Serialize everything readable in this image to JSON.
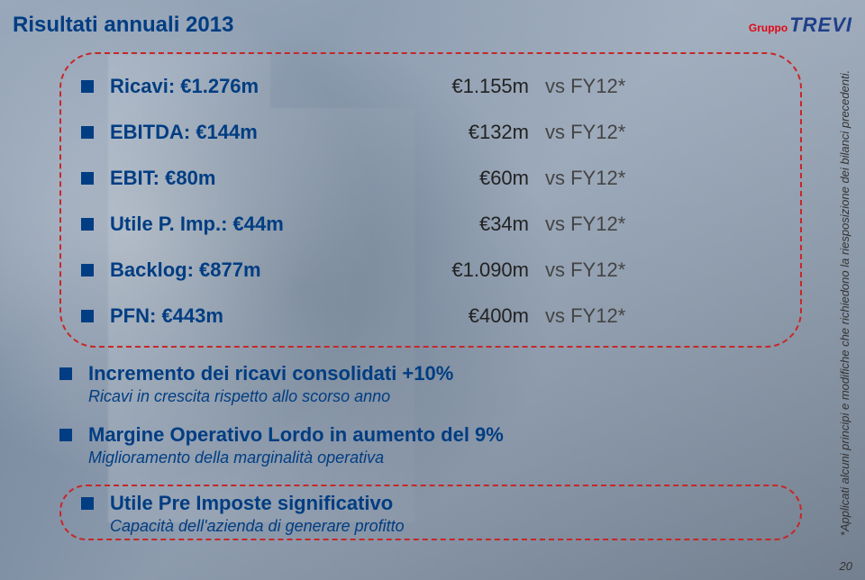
{
  "colors": {
    "title": "#003d82",
    "bullet": "#003d82",
    "dashed_border": "#c62828",
    "logo_red": "#e30613",
    "logo_blue": "#1f3f8a",
    "text_dark": "#222222",
    "subtext": "#003d82"
  },
  "header": {
    "title": "Risultati annuali 2013",
    "logo_gruppo": "Gruppo",
    "logo_trevi": "TREVI"
  },
  "metrics": [
    {
      "label": "Ricavi: €1.276m",
      "value": "€1.155m",
      "compare": "vs FY12*"
    },
    {
      "label": "EBITDA: €144m",
      "value": "€132m",
      "compare": "vs FY12*"
    },
    {
      "label": "EBIT: €80m",
      "value": "€60m",
      "compare": "vs FY12*"
    },
    {
      "label": "Utile P. Imp.: €44m",
      "value": "€34m",
      "compare": "vs FY12*"
    },
    {
      "label": "Backlog: €877m",
      "value": "€1.090m",
      "compare": "vs FY12*"
    },
    {
      "label": "PFN: €443m",
      "value": "€400m",
      "compare": "vs FY12*"
    }
  ],
  "notes": {
    "n1_title": "Incremento dei ricavi consolidati +10%",
    "n1_sub": "Ricavi in crescita rispetto allo scorso anno",
    "n2_title": "Margine Operativo Lordo in aumento del 9%",
    "n2_sub": "Miglioramento della marginalità operativa",
    "h_title": "Utile Pre Imposte significativo",
    "h_sub": "Capacità dell'azienda di generare profitto"
  },
  "footnote": "*Applicati alcuni principi e modifiche che richiedono la riesposizione dei bilanci precedenti.",
  "page_number": "20"
}
